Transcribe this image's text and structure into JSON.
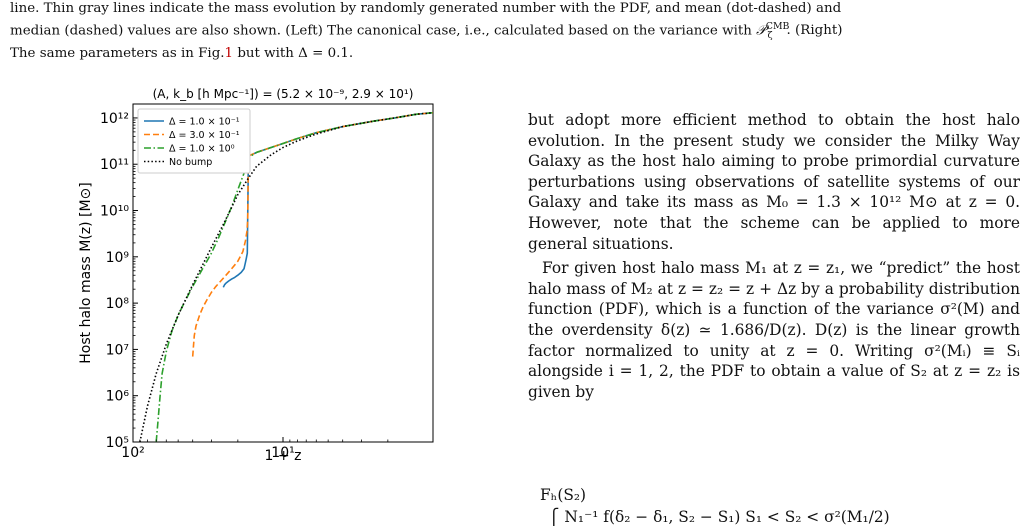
{
  "caption": {
    "line1": "line. Thin gray lines indicate the mass evolution by randomly generated number with the PDF, and mean (dot-dashed) and",
    "line2_a": "median (dashed) values are also shown. (Left) The canonical case, i.e., calculated based on the variance with ",
    "line2_sym": "𝒫",
    "line2_sub": "ζ",
    "line2_sup": "CMB",
    "line2_b": ". (Right)",
    "line3_a": "The same parameters as in Fig.",
    "line3_ref": "1",
    "line3_b": " but with Δ = 0.1."
  },
  "chart_data": {
    "type": "line",
    "title": "(A, k_b [h Mpc⁻¹]) = (5.2 × 10⁻⁹, 2.9 × 10¹)",
    "xlabel": "1 + z",
    "ylabel": "Host halo mass M(z) [M⊙]",
    "x_scale": "log",
    "y_scale": "log",
    "x_reversed": true,
    "xlim": [
      100,
      1
    ],
    "ylim": [
      100000,
      2000000000000
    ],
    "x_ticks": [
      "10²",
      "10¹"
    ],
    "y_ticks": [
      "10⁵",
      "10⁶",
      "10⁷",
      "10⁸",
      "10⁹",
      "10¹⁰",
      "10¹¹",
      "10¹²"
    ],
    "legend_position": "top-left",
    "series": [
      {
        "name": "Δ = 1.0 × 10⁻¹",
        "color": "#1f77b4",
        "style": "solid",
        "x": [
          25,
          24.5,
          24,
          23,
          22,
          21,
          20,
          19,
          18.2,
          17.9,
          17.6,
          17.3,
          17,
          15,
          12,
          10,
          8,
          6,
          4,
          2.5,
          1.8,
          1.3,
          1
        ],
        "y": [
          220000000.0,
          250000000.0,
          270000000.0,
          300000000.0,
          330000000.0,
          360000000.0,
          400000000.0,
          460000000.0,
          550000000.0,
          700000000.0,
          900000000.0,
          1200000000.0,
          150000000000.0,
          180000000000.0,
          230000000000.0,
          280000000000.0,
          360000000000.0,
          480000000000.0,
          650000000000.0,
          850000000000.0,
          1000000000000.0,
          1200000000000.0,
          1300000000000.0
        ]
      },
      {
        "name": "Δ = 3.0 × 10⁻¹",
        "color": "#ff7f0e",
        "style": "dashed",
        "x": [
          40,
          39.5,
          39,
          38,
          36,
          34,
          32,
          30,
          28,
          26,
          24,
          22,
          20,
          18.5,
          17.8,
          17.4,
          17.2,
          17,
          15,
          12,
          10,
          8,
          6,
          4,
          2.5,
          1.8,
          1.3,
          1
        ],
        "y": [
          7000000.0,
          12000000.0,
          20000000.0,
          32000000.0,
          55000000.0,
          85000000.0,
          120000000.0,
          170000000.0,
          230000000.0,
          300000000.0,
          400000000.0,
          550000000.0,
          800000000.0,
          1300000000.0,
          2200000000.0,
          3500000000.0,
          6000000000.0,
          150000000000.0,
          180000000000.0,
          230000000000.0,
          280000000000.0,
          360000000000.0,
          480000000000.0,
          650000000000.0,
          850000000000.0,
          1000000000000.0,
          1200000000000.0,
          1300000000000.0
        ]
      },
      {
        "name": "Δ = 1.0 × 10⁰",
        "color": "#2ca02c",
        "style": "dashdot",
        "x": [
          70,
          68,
          66,
          64,
          60,
          55,
          50,
          45,
          40,
          35,
          30,
          27,
          25,
          22,
          20,
          18,
          17,
          15,
          12,
          10,
          8,
          6,
          4,
          2.5,
          1.8,
          1.3,
          1
        ],
        "y": [
          100000.0,
          300000.0,
          1000000.0,
          3000000.0,
          9000000.0,
          25000000.0,
          55000000.0,
          110000000.0,
          230000000.0,
          500000000.0,
          1200000000.0,
          2500000000.0,
          4500000000.0,
          12000000000.0,
          28000000000.0,
          70000000000.0,
          140000000000.0,
          180000000000.0,
          230000000000.0,
          280000000000.0,
          360000000000.0,
          480000000000.0,
          650000000000.0,
          850000000000.0,
          1000000000000.0,
          1200000000000.0,
          1300000000000.0
        ]
      },
      {
        "name": "No bump",
        "color": "#000000",
        "style": "dotted",
        "x": [
          90,
          80,
          70,
          60,
          50,
          40,
          30,
          25,
          20,
          17,
          15,
          12,
          10,
          8,
          6,
          4,
          2.5,
          1.8,
          1.3,
          1
        ],
        "y": [
          100000.0,
          600000.0,
          3000000.0,
          13000000.0,
          55000000.0,
          250000000.0,
          1600000000.0,
          5000000000.0,
          22000000000.0,
          50000000000.0,
          90000000000.0,
          160000000000.0,
          230000000000.0,
          320000000000.0,
          450000000000.0,
          650000000000.0,
          850000000000.0,
          1000000000000.0,
          1200000000000.0,
          1300000000000.0
        ]
      }
    ]
  },
  "body": {
    "p1": "but adopt more efficient method to obtain the host halo evolution. In the present study we consider the Milky Way Galaxy as the host halo aiming to probe primordial curvature perturbations using observations of satellite systems of our Galaxy and take its mass as M₀ = 1.3 × 10¹² M⊙ at z = 0. However, note that the scheme can be applied to more general situations.",
    "p2": "For given host halo mass M₁ at z = z₁, we “predict” the host halo mass of M₂ at z = z₂ = z + Δz by a probability distribution function (PDF), which is a function of the variance σ²(M) and the overdensity δ(z) ≃ 1.686/D(z). D(z) is the linear growth factor normalized to unity at z = 0. Writing σ²(Mᵢ) ≡ Sᵢ alongside i = 1, 2, the PDF to obtain a value of S₂ at z = z₂ is given by",
    "eq_lhs": "Fₕ(S₂)",
    "eq_rhs": "⎧ N₁⁻¹ f(δ₂ − δ₁, S₂ − S₁)   S₁ < S₂ < σ²(M₁/2)"
  }
}
